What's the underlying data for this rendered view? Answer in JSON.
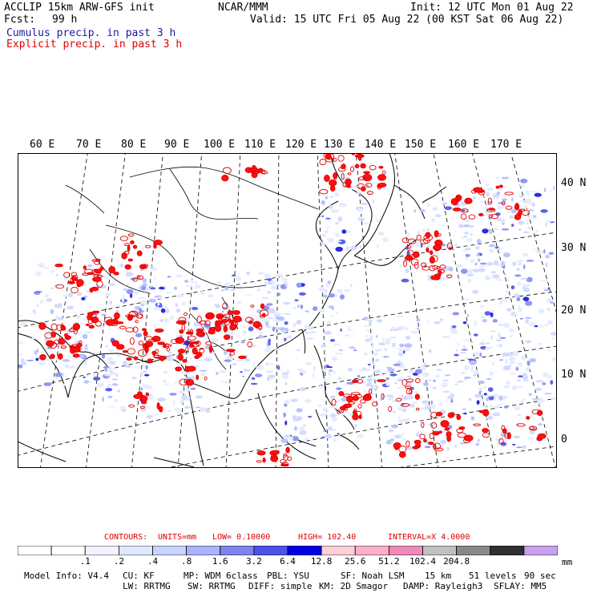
{
  "header": {
    "model_line": "ACCLIP 15km ARW-GFS init",
    "org": "NCAR/MMM",
    "init": "Init: 12 UTC Mon 01 Aug 22",
    "fcst_label": "Fcst:",
    "fcst_value": "99 h",
    "valid": "Valid: 15 UTC Fri 05 Aug 22 (00 KST Sat 06 Aug 22)",
    "legend_cumulus": "Cumulus precip. in past 3 h",
    "legend_explicit": "Explicit precip. in past 3 h"
  },
  "map": {
    "lon_labels": [
      "60 E",
      "70 E",
      "80 E",
      "90 E",
      "100 E",
      "110 E",
      "120 E",
      "130 E",
      "140 E",
      "150 E",
      "160 E",
      "170 E"
    ],
    "lat_labels": [
      "40 N",
      "30 N",
      "20 N",
      "10 N",
      "0"
    ]
  },
  "contours": {
    "label": "CONTOURS:",
    "units": "UNITS=mm",
    "low": "LOW= 0.10000",
    "high": "HIGH= 102.40",
    "interval": "INTERVAL=X 4.0000"
  },
  "colorbar": {
    "ticks": [
      ".1",
      ".2",
      ".4",
      ".8",
      "1.6",
      "3.2",
      "6.4",
      "12.8",
      "25.6",
      "51.2",
      "102.4",
      "204.8"
    ],
    "units": "mm",
    "colors": [
      "#ffffff",
      "#ffffff",
      "#f2f2ff",
      "#e0e8ff",
      "#c8d4ff",
      "#aab4ff",
      "#7d82f0",
      "#5050ea",
      "#0000e8",
      "#ffd0d8",
      "#ffb0c8",
      "#f088b8",
      "#c0c0c0",
      "#888888",
      "#303030",
      "#c8a0f0"
    ]
  },
  "footer": {
    "model_info": "Model Info: V4.4",
    "cu": "CU: KF",
    "mp": "MP: WDM 6class",
    "pbl": "PBL: YSU",
    "sf": "SF: Noah LSM",
    "res": "15 km",
    "levels": "51 levels",
    "dt": "90 sec",
    "lw": "LW: RRTMG",
    "sw": "SW: RRTMG",
    "diff": "DIFF: simple",
    "km": "KM: 2D Smagor",
    "damp": "DAMP: Rayleigh3",
    "sflay": "SFLAY: MM5"
  }
}
